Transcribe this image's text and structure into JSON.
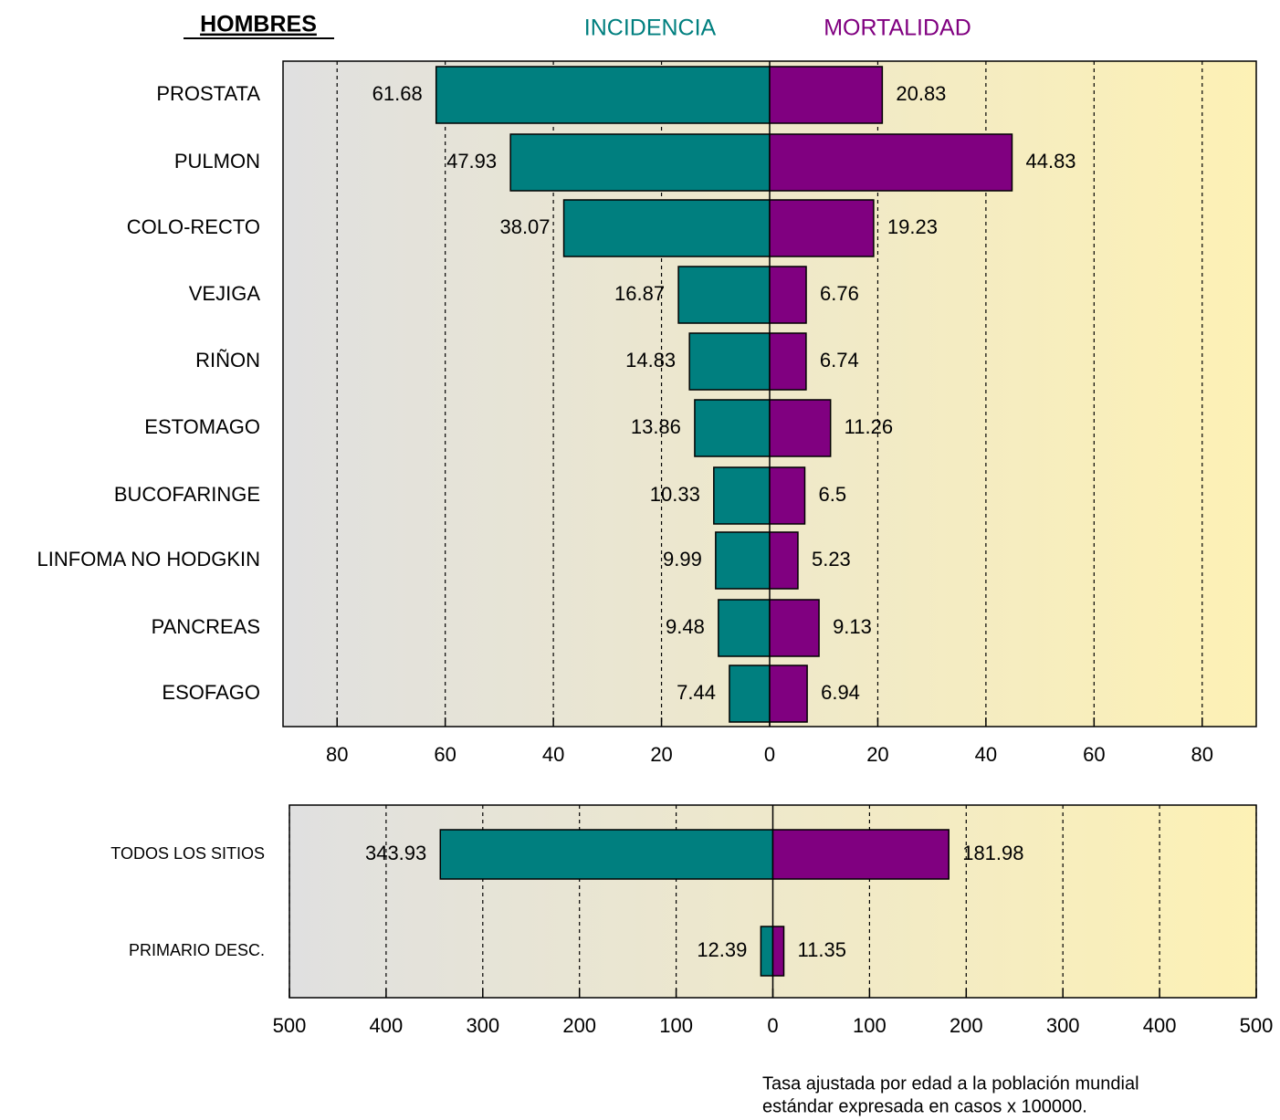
{
  "chart_data": [
    {
      "type": "butterfly-bar",
      "title": "HOMBRES",
      "categories": [
        "PROSTATA",
        "PULMON",
        "COLO-RECTO",
        "VEJIGA",
        "RIÑON",
        "ESTOMAGO",
        "BUCOFARINGE",
        "LINFOMA NO HODGKIN",
        "PANCREAS",
        "ESOFAGO"
      ],
      "series": [
        {
          "name": "INCIDENCIA",
          "color": "#007f7f",
          "side": "left",
          "values": [
            61.68,
            47.93,
            38.07,
            16.87,
            14.83,
            13.86,
            10.33,
            9.99,
            9.48,
            7.44
          ]
        },
        {
          "name": "MORTALIDAD",
          "color": "#800080",
          "side": "right",
          "values": [
            20.83,
            44.83,
            19.23,
            6.76,
            6.74,
            11.26,
            6.5,
            5.23,
            9.13,
            6.94
          ]
        }
      ],
      "xlim": [
        -90,
        90
      ],
      "xticks": [
        {
          "value": -80,
          "label": "80"
        },
        {
          "value": -60,
          "label": "60"
        },
        {
          "value": -40,
          "label": "40"
        },
        {
          "value": -20,
          "label": "20"
        },
        0,
        20,
        40,
        60,
        80
      ],
      "grid": true
    },
    {
      "type": "butterfly-bar",
      "categories": [
        "TODOS LOS SITIOS",
        "PRIMARIO DESC."
      ],
      "series": [
        {
          "color": "#007f7f",
          "side": "left",
          "values": [
            343.93,
            12.39
          ]
        },
        {
          "color": "#800080",
          "side": "right",
          "values": [
            181.98,
            11.35
          ]
        }
      ],
      "xlim": [
        -500,
        500
      ],
      "xticks": [
        {
          "value": -500,
          "label": "500"
        },
        {
          "value": -400,
          "label": "400"
        },
        {
          "value": -300,
          "label": "300"
        },
        {
          "value": -200,
          "label": "200"
        },
        {
          "value": -100,
          "label": "100"
        },
        0,
        100,
        200,
        300,
        400,
        500
      ],
      "grid": true,
      "annotation": [
        "Tasa ajustada por edad a la población mundial",
        "estándar expresada en casos x 100000."
      ]
    }
  ]
}
